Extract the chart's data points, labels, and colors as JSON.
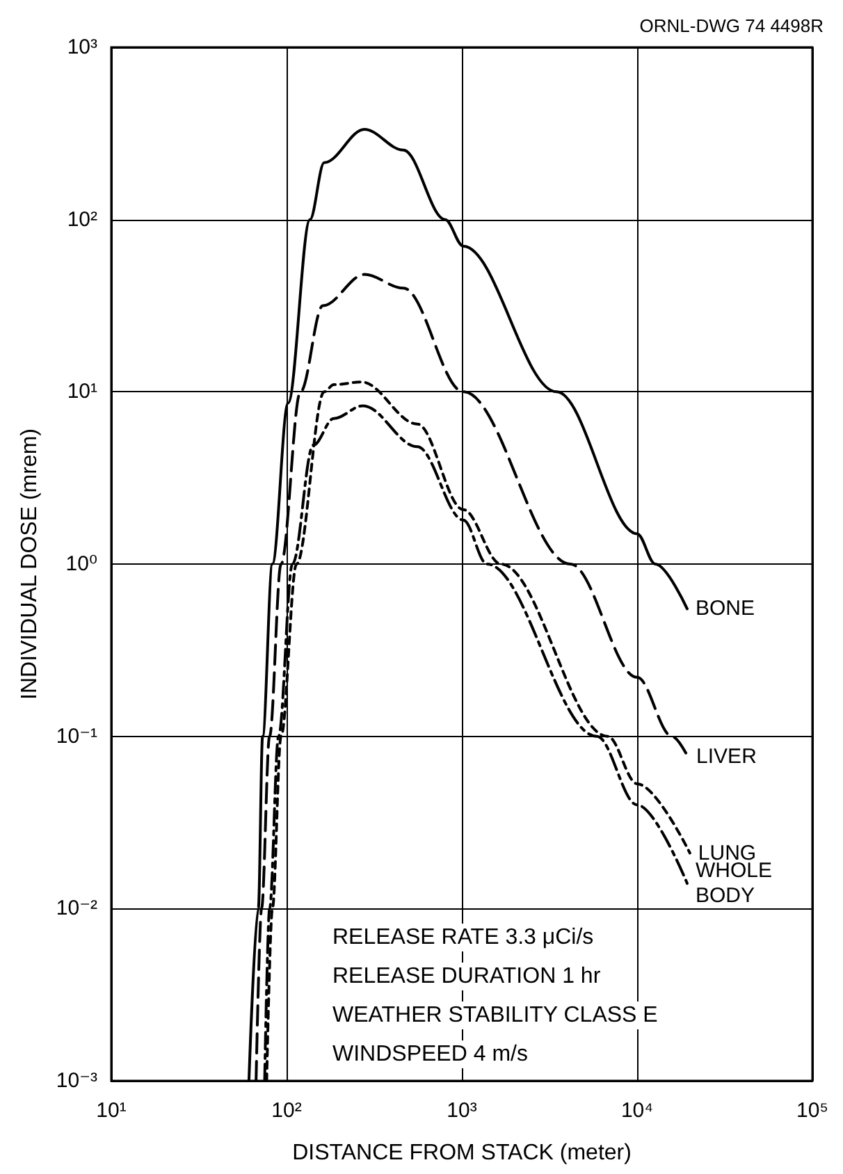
{
  "chart_data": {
    "type": "line",
    "xlabel": "DISTANCE FROM STACK (meter)",
    "ylabel": "INDIVIDUAL DOSE (mrem)",
    "annotations": [
      "ORNL-DWG 74 4498R",
      "RELEASE RATE 3.3 μCi/s",
      "RELEASE DURATION 1 hr",
      "WEATHER STABILITY CLASS E",
      "WINDSPEED 4 m/s"
    ],
    "log": "xy",
    "grid": true,
    "legend": false,
    "marker": "none",
    "xlim": [
      10,
      100000
    ],
    "ylim": [
      0.001,
      1000
    ],
    "xticks": [
      {
        "value": 10,
        "label": "10¹"
      },
      {
        "value": 100,
        "label": "10²"
      },
      {
        "value": 1000,
        "label": "10³"
      },
      {
        "value": 10000,
        "label": "10⁴"
      },
      {
        "value": 100000,
        "label": "10⁵"
      }
    ],
    "yticks": [
      {
        "value": 0.001,
        "label": "10⁻³"
      },
      {
        "value": 0.01,
        "label": "10⁻²"
      },
      {
        "value": 0.1,
        "label": "10⁻¹"
      },
      {
        "value": 1,
        "label": "10⁰"
      },
      {
        "value": 10,
        "label": "10¹"
      },
      {
        "value": 100,
        "label": "10²"
      },
      {
        "value": 1000,
        "label": "10³"
      }
    ],
    "series": [
      {
        "name": "BONE",
        "color": "#000000",
        "line_style": "solid",
        "x": [
          61,
          69,
          73,
          83,
          102,
          136,
          164,
          278,
          464,
          803,
          1020,
          3470,
          10000,
          12700,
          19300
        ],
        "values": [
          0.001,
          0.01,
          0.1,
          1,
          8.6,
          100,
          214,
          334,
          253,
          100,
          70,
          10,
          1.5,
          1,
          0.55
        ]
      },
      {
        "name": "LIVER",
        "color": "#000000",
        "line_style": "dashed",
        "x": [
          67,
          72,
          80,
          93,
          120,
          161,
          278,
          464,
          1020,
          4160,
          10000,
          15800,
          19500
        ],
        "values": [
          0.001,
          0.01,
          0.1,
          1,
          10,
          31.6,
          48,
          40,
          10,
          1,
          0.22,
          0.1,
          0.076
        ]
      },
      {
        "name": "LUNG",
        "color": "#000000",
        "line_style": "dotted",
        "x": [
          77,
          83,
          93,
          114,
          164,
          186,
          268,
          557,
          1020,
          1670,
          6800,
          10000,
          20000
        ],
        "values": [
          0.001,
          0.01,
          0.1,
          1,
          10,
          11,
          11.4,
          6.5,
          2.07,
          1,
          0.1,
          0.053,
          0.021
        ]
      },
      {
        "name": "WHOLE BODY",
        "color": "#000000",
        "line_style": "dashdot",
        "x": [
          75,
          80,
          90,
          108,
          142,
          186,
          273,
          557,
          1020,
          1390,
          5890,
          10000,
          19300
        ],
        "values": [
          0.001,
          0.01,
          0.1,
          1,
          4.9,
          7,
          8.3,
          4.8,
          1.8,
          1,
          0.1,
          0.04,
          0.014
        ]
      }
    ]
  }
}
